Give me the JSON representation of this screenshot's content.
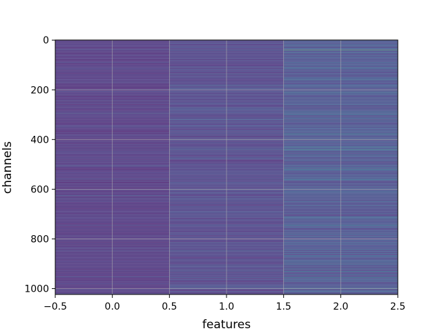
{
  "chart_data": {
    "type": "heatmap",
    "xlabel": "features",
    "ylabel": "channels",
    "xlim": [
      -0.5,
      2.5
    ],
    "ylim": [
      1023.5,
      -0.5
    ],
    "xticks": [
      -0.5,
      0.0,
      0.5,
      1.0,
      1.5,
      2.0,
      2.5
    ],
    "xtick_labels": [
      "−0.5",
      "0.0",
      "0.5",
      "1.0",
      "1.5",
      "2.0",
      "2.5"
    ],
    "yticks": [
      0,
      200,
      400,
      600,
      800,
      1000
    ],
    "ytick_labels": [
      "0",
      "200",
      "400",
      "600",
      "800",
      "1000"
    ],
    "grid": true,
    "colormap": "viridis",
    "columns": [
      0,
      1,
      2
    ],
    "n_rows": 1024,
    "approx_value_range": [
      0.0,
      1.0
    ],
    "highlighted_rows": [
      {
        "row": 40,
        "values": [
          0.25,
          0.3,
          0.85
        ]
      },
      {
        "row": 160,
        "values": [
          0.15,
          0.2,
          0.5
        ]
      },
      {
        "row": 300,
        "values": [
          0.2,
          0.25,
          0.45
        ]
      },
      {
        "row": 380,
        "values": [
          0.15,
          0.2,
          0.5
        ]
      },
      {
        "row": 430,
        "values": [
          0.25,
          0.35,
          0.6
        ]
      },
      {
        "row": 440,
        "values": [
          0.3,
          0.4,
          0.65
        ]
      },
      {
        "row": 520,
        "values": [
          0.15,
          0.25,
          0.55
        ]
      },
      {
        "row": 560,
        "values": [
          0.3,
          0.4,
          0.55
        ]
      },
      {
        "row": 745,
        "values": [
          0.3,
          0.35,
          0.5
        ]
      },
      {
        "row": 890,
        "values": [
          0.15,
          0.2,
          0.45
        ]
      },
      {
        "row": 955,
        "values": [
          0.2,
          0.3,
          0.55
        ]
      }
    ],
    "colors": {
      "background": "#ffffff",
      "grid": "#b0b0b0",
      "axis": "#000000"
    }
  }
}
